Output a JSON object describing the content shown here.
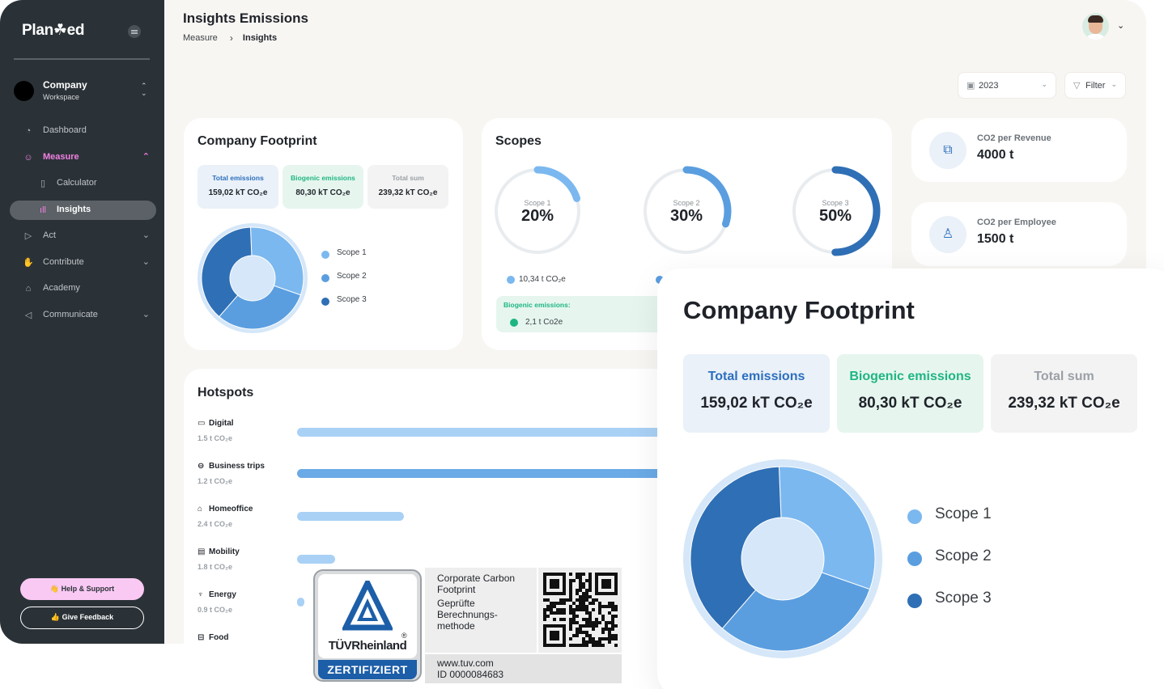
{
  "sidebar": {
    "logo": "Plan☘ed",
    "workspace": {
      "name": "Company",
      "sub": "Workspace"
    },
    "items": [
      {
        "label": "Dashboard",
        "icon": "pie-chart-icon"
      },
      {
        "label": "Measure",
        "icon": "gauge-icon"
      },
      {
        "label": "Calculator",
        "icon": "calculator-icon"
      },
      {
        "label": "Insights",
        "icon": "bar-chart-icon"
      },
      {
        "label": "Act",
        "icon": "play-icon"
      },
      {
        "label": "Contribute",
        "icon": "hand-icon"
      },
      {
        "label": "Academy",
        "icon": "graduation-icon"
      },
      {
        "label": "Communicate",
        "icon": "megaphone-icon"
      }
    ],
    "help_label": "👋 Help & Support",
    "feedback_label": "👍 Give Feedback"
  },
  "header": {
    "title": "Insights Emissions",
    "breadcrumb": [
      "Measure",
      "Insights"
    ],
    "year": "2023",
    "filter_label": "Filter"
  },
  "footprint": {
    "title": "Company Footprint",
    "stats": [
      {
        "label": "Total emissions",
        "value": "159,02 kT CO₂e"
      },
      {
        "label": "Biogenic emissions",
        "value": "80,30 kT CO₂e"
      },
      {
        "label": "Total sum",
        "value": "239,32 kT CO₂e"
      }
    ],
    "legend": [
      "Scope 1",
      "Scope 2",
      "Scope 3"
    ],
    "donut_shares": [
      0.31,
      0.31,
      0.38
    ]
  },
  "scopes": {
    "title": "Scopes",
    "gauges": [
      {
        "name": "Scope 1",
        "percent": "20%",
        "fraction": 0.2,
        "color": "#7bb8f0"
      },
      {
        "name": "Scope 2",
        "percent": "30%",
        "fraction": 0.3,
        "color": "#5a9ee0"
      },
      {
        "name": "Scope 3",
        "percent": "50%",
        "fraction": 0.5,
        "color": "#2f6fb5"
      }
    ],
    "scope1_amount": "10,34 t CO₂e",
    "biogenic_label": "Biogenic emissions:",
    "biogenic_value": "2,1 t Co2e"
  },
  "kpis": [
    {
      "title": "CO2 per Revenue",
      "value": "4000 t",
      "icon": "money-icon"
    },
    {
      "title": "CO2 per Employee",
      "value": "1500 t",
      "icon": "user-icon"
    }
  ],
  "hotspots": {
    "title": "Hotspots",
    "items": [
      {
        "name": "Digital",
        "value": "1.5 t CO₂e",
        "icon": "monitor-icon",
        "share": 1.0
      },
      {
        "name": "Business trips",
        "value": "1.2 t CO₂e",
        "icon": "car-icon",
        "share": 1.0
      },
      {
        "name": "Homeoffice",
        "value": "2.4 t CO₂e",
        "icon": "home-icon",
        "share": 0.28
      },
      {
        "name": "Mobility",
        "value": "1.8 t CO₂e",
        "icon": "bus-icon",
        "share": 0.1
      },
      {
        "name": "Energy",
        "value": "0.9 t CO₂e",
        "icon": "energy-icon",
        "share": 0.02
      },
      {
        "name": "Food",
        "value": "",
        "icon": "food-icon",
        "share": 0
      }
    ]
  },
  "tuv": {
    "brand": "TÜVRheinland",
    "registered": "®",
    "cert": "ZERTIFIZIERT",
    "lines": [
      "Corporate Carbon",
      "Footprint",
      "Geprüfte",
      "Berechnungs-",
      "methode"
    ],
    "url": "www.tuv.com",
    "id": "ID  0000084683"
  },
  "colors": {
    "scope1": "#7bb8f0",
    "scope2": "#5a9ee0",
    "scope3": "#2f6fb5",
    "accent": "#f27fe2",
    "sidebar": "#2b3237"
  }
}
